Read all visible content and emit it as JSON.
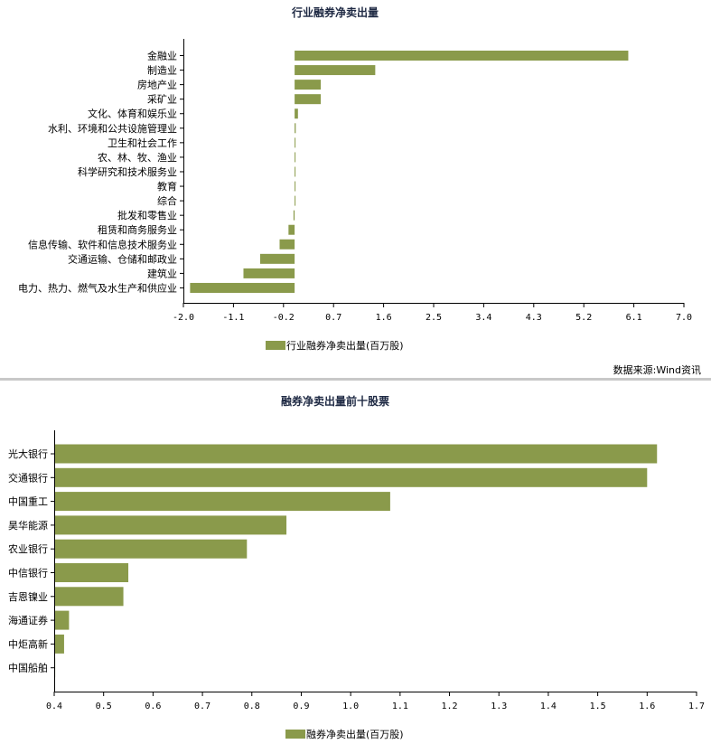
{
  "chart_data": [
    {
      "type": "bar",
      "orientation": "horizontal",
      "title": "行业融券净卖出量",
      "categories": [
        "金融业",
        "制造业",
        "房地产业",
        "采矿业",
        "文化、体育和娱乐业",
        "水利、环境和公共设施管理业",
        "卫生和社会工作",
        "农、林、牧、渔业",
        "科学研究和技术服务业",
        "教育",
        "综合",
        "批发和零售业",
        "租赁和商务服务业",
        "信息传输、软件和信息技术服务业",
        "交通运输、仓储和邮政业",
        "建筑业",
        "电力、热力、燃气及水生产和供应业"
      ],
      "series": [
        {
          "name": "行业融券净卖出量(百万股)",
          "values": [
            6.0,
            1.45,
            0.47,
            0.47,
            0.06,
            0.02,
            0.01,
            0.01,
            0.01,
            0.01,
            0.005,
            -0.02,
            -0.11,
            -0.27,
            -0.62,
            -0.92,
            -1.88
          ]
        }
      ],
      "xlim": [
        -2.0,
        7.0
      ],
      "xticks": [
        "-2.0",
        "-1.1",
        "-0.2",
        "0.7",
        "1.6",
        "2.5",
        "3.4",
        "4.3",
        "5.2",
        "6.1",
        "7.0"
      ],
      "grid": false,
      "legend": "bottom",
      "color": "#8a9a4b"
    },
    {
      "type": "bar",
      "orientation": "horizontal",
      "title": "融券净卖出量前十股票",
      "categories": [
        "光大银行",
        "交通银行",
        "中国重工",
        "昊华能源",
        "农业银行",
        "中信银行",
        "吉恩镍业",
        "海通证券",
        "中炬高新",
        "中国船舶"
      ],
      "series": [
        {
          "name": "融券净卖出量(百万股)",
          "values": [
            1.62,
            1.6,
            1.08,
            0.87,
            0.79,
            0.55,
            0.54,
            0.43,
            0.42,
            0.402
          ]
        }
      ],
      "xlim": [
        0.4,
        1.7
      ],
      "xticks": [
        "0.4",
        "0.5",
        "0.6",
        "0.7",
        "0.8",
        "0.9",
        "1.0",
        "1.1",
        "1.2",
        "1.3",
        "1.4",
        "1.5",
        "1.6",
        "1.7"
      ],
      "grid": false,
      "legend": "bottom",
      "color": "#8a9a4b"
    }
  ],
  "source_note": "数据来源:Wind资讯",
  "colors": {
    "bar": "#8a9a4b",
    "divider": "#c8c8c8",
    "title": "#1f2a44"
  }
}
